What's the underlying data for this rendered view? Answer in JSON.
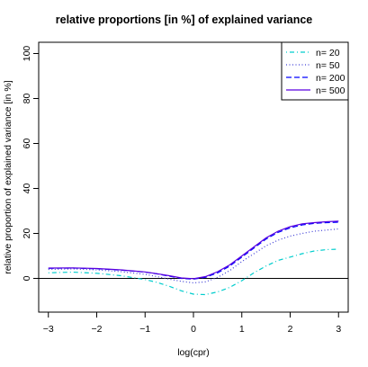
{
  "chart_data": {
    "type": "line",
    "title": "relative proportions [in %] of explained variance",
    "xlabel": "log(cpr)",
    "ylabel": "relative proportion of explained variance [in %]",
    "xlim": [
      -3.2,
      3.2
    ],
    "ylim": [
      -15,
      105
    ],
    "xticks": [
      -3,
      -2,
      -1,
      0,
      1,
      2,
      3
    ],
    "yticks": [
      0,
      20,
      40,
      60,
      80,
      100
    ],
    "xtick_labels": [
      "−3",
      "−2",
      "−1",
      "0",
      "1",
      "2",
      "3"
    ],
    "ytick_labels": [
      "0",
      "20",
      "40",
      "60",
      "80",
      "100"
    ],
    "hline": 0,
    "grid": false,
    "legend_position": "top-right",
    "x": [
      -3.0,
      -2.5,
      -2.0,
      -1.5,
      -1.0,
      -0.75,
      -0.5,
      -0.25,
      0.0,
      0.25,
      0.5,
      0.75,
      1.0,
      1.25,
      1.5,
      1.75,
      2.0,
      2.25,
      2.5,
      2.75,
      3.0
    ],
    "series": [
      {
        "name": "n= 20",
        "color": "#00CDCD",
        "dash": "dotdash",
        "values": [
          2.5,
          2.8,
          2.3,
          1.2,
          -0.5,
          -1.8,
          -3.5,
          -5.5,
          -7.0,
          -7.2,
          -6.0,
          -4.0,
          -1.0,
          2.5,
          5.5,
          8.0,
          9.5,
          11.0,
          12.2,
          12.8,
          13.0
        ]
      },
      {
        "name": "n= 50",
        "color": "#3D3DD6",
        "dash": "dotted",
        "values": [
          4.0,
          4.2,
          3.8,
          3.0,
          1.8,
          0.8,
          -0.3,
          -1.3,
          -2.0,
          -1.5,
          0.5,
          3.5,
          7.5,
          11.0,
          14.5,
          17.0,
          18.8,
          20.0,
          21.0,
          21.5,
          22.0
        ]
      },
      {
        "name": "n= 200",
        "color": "#0000FF",
        "dash": "dashed",
        "values": [
          4.5,
          4.6,
          4.3,
          3.7,
          2.8,
          2.0,
          1.0,
          0.0,
          -0.3,
          0.5,
          2.5,
          5.5,
          9.5,
          13.5,
          17.5,
          20.5,
          22.5,
          23.8,
          24.5,
          24.8,
          25.0
        ]
      },
      {
        "name": "n= 500",
        "color": "#5A00E0",
        "dash": "solid",
        "values": [
          4.6,
          4.7,
          4.4,
          3.8,
          2.9,
          2.1,
          1.2,
          0.2,
          -0.1,
          0.8,
          3.0,
          6.0,
          10.0,
          14.0,
          18.0,
          21.0,
          23.0,
          24.3,
          24.8,
          25.2,
          25.5
        ]
      }
    ]
  }
}
